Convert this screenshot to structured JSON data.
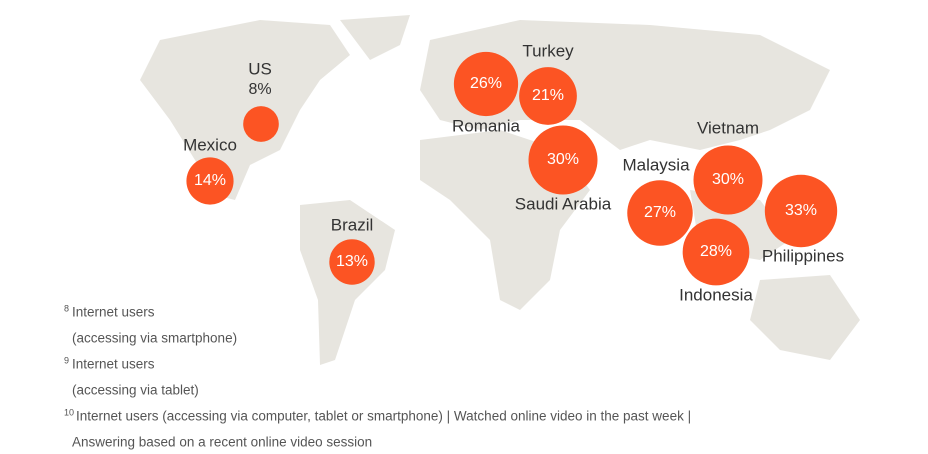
{
  "map": {
    "points": [
      {
        "name": "US",
        "value": 8,
        "value_label": "8%"
      },
      {
        "name": "Mexico",
        "value": 14,
        "value_label": "14%"
      },
      {
        "name": "Brazil",
        "value": 13,
        "value_label": "13%"
      },
      {
        "name": "Romania",
        "value": 26,
        "value_label": "26%"
      },
      {
        "name": "Turkey",
        "value": 21,
        "value_label": "21%"
      },
      {
        "name": "Saudi Arabia",
        "value": 30,
        "value_label": "30%"
      },
      {
        "name": "Malaysia",
        "value": 27,
        "value_label": "27%"
      },
      {
        "name": "Vietnam",
        "value": 30,
        "value_label": "30%"
      },
      {
        "name": "Philippines",
        "value": 33,
        "value_label": "33%"
      },
      {
        "name": "Indonesia",
        "value": 28,
        "value_label": "28%"
      }
    ],
    "color": "#fc5423"
  },
  "footnotes": [
    {
      "mark": "8",
      "lines": [
        "Internet users",
        "(accessing via smartphone)"
      ]
    },
    {
      "mark": "9",
      "lines": [
        "Internet users",
        "(accessing via tablet)"
      ]
    },
    {
      "mark": "10",
      "lines": [
        "Internet users (accessing via computer, tablet or smartphone) | Watched online video in the past week |",
        "Answering based on a recent online video session"
      ]
    }
  ]
}
